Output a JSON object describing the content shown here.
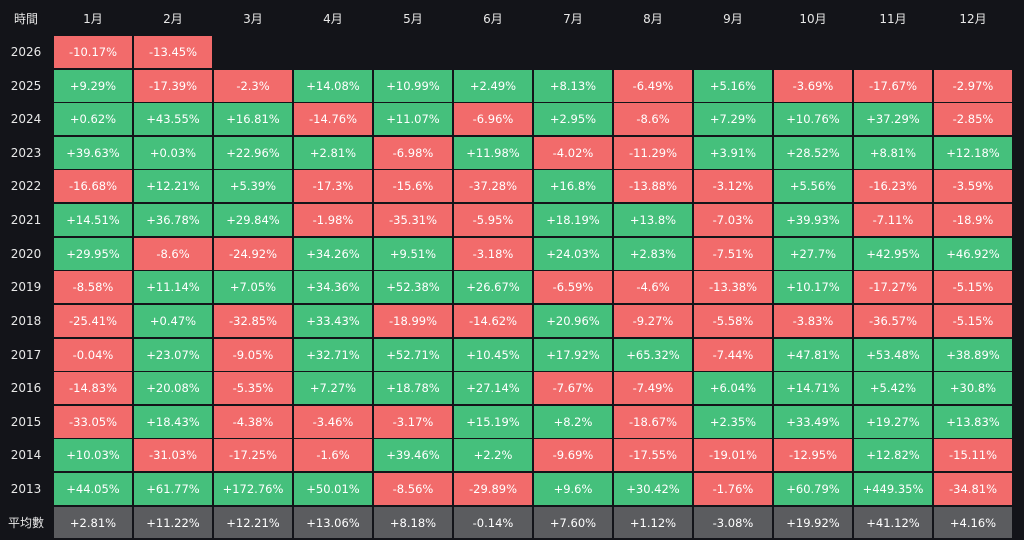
{
  "table": {
    "header": [
      "時間",
      "1月",
      "2月",
      "3月",
      "4月",
      "5月",
      "6月",
      "7月",
      "8月",
      "9月",
      "10月",
      "11月",
      "12月"
    ],
    "rows": [
      {
        "label": "2026",
        "cells": [
          "-10.17%",
          "-13.45%"
        ]
      },
      {
        "label": "2025",
        "cells": [
          "+9.29%",
          "-17.39%",
          "-2.3%",
          "+14.08%",
          "+10.99%",
          "+2.49%",
          "+8.13%",
          "-6.49%",
          "+5.16%",
          "-3.69%",
          "-17.67%",
          "-2.97%"
        ]
      },
      {
        "label": "2024",
        "cells": [
          "+0.62%",
          "+43.55%",
          "+16.81%",
          "-14.76%",
          "+11.07%",
          "-6.96%",
          "+2.95%",
          "-8.6%",
          "+7.29%",
          "+10.76%",
          "+37.29%",
          "-2.85%"
        ]
      },
      {
        "label": "2023",
        "cells": [
          "+39.63%",
          "+0.03%",
          "+22.96%",
          "+2.81%",
          "-6.98%",
          "+11.98%",
          "-4.02%",
          "-11.29%",
          "+3.91%",
          "+28.52%",
          "+8.81%",
          "+12.18%"
        ]
      },
      {
        "label": "2022",
        "cells": [
          "-16.68%",
          "+12.21%",
          "+5.39%",
          "-17.3%",
          "-15.6%",
          "-37.28%",
          "+16.8%",
          "-13.88%",
          "-3.12%",
          "+5.56%",
          "-16.23%",
          "-3.59%"
        ]
      },
      {
        "label": "2021",
        "cells": [
          "+14.51%",
          "+36.78%",
          "+29.84%",
          "-1.98%",
          "-35.31%",
          "-5.95%",
          "+18.19%",
          "+13.8%",
          "-7.03%",
          "+39.93%",
          "-7.11%",
          "-18.9%"
        ]
      },
      {
        "label": "2020",
        "cells": [
          "+29.95%",
          "-8.6%",
          "-24.92%",
          "+34.26%",
          "+9.51%",
          "-3.18%",
          "+24.03%",
          "+2.83%",
          "-7.51%",
          "+27.7%",
          "+42.95%",
          "+46.92%"
        ]
      },
      {
        "label": "2019",
        "cells": [
          "-8.58%",
          "+11.14%",
          "+7.05%",
          "+34.36%",
          "+52.38%",
          "+26.67%",
          "-6.59%",
          "-4.6%",
          "-13.38%",
          "+10.17%",
          "-17.27%",
          "-5.15%"
        ]
      },
      {
        "label": "2018",
        "cells": [
          "-25.41%",
          "+0.47%",
          "-32.85%",
          "+33.43%",
          "-18.99%",
          "-14.62%",
          "+20.96%",
          "-9.27%",
          "-5.58%",
          "-3.83%",
          "-36.57%",
          "-5.15%"
        ]
      },
      {
        "label": "2017",
        "cells": [
          "-0.04%",
          "+23.07%",
          "-9.05%",
          "+32.71%",
          "+52.71%",
          "+10.45%",
          "+17.92%",
          "+65.32%",
          "-7.44%",
          "+47.81%",
          "+53.48%",
          "+38.89%"
        ]
      },
      {
        "label": "2016",
        "cells": [
          "-14.83%",
          "+20.08%",
          "-5.35%",
          "+7.27%",
          "+18.78%",
          "+27.14%",
          "-7.67%",
          "-7.49%",
          "+6.04%",
          "+14.71%",
          "+5.42%",
          "+30.8%"
        ]
      },
      {
        "label": "2015",
        "cells": [
          "-33.05%",
          "+18.43%",
          "-4.38%",
          "-3.46%",
          "-3.17%",
          "+15.19%",
          "+8.2%",
          "-18.67%",
          "+2.35%",
          "+33.49%",
          "+19.27%",
          "+13.83%"
        ]
      },
      {
        "label": "2014",
        "cells": [
          "+10.03%",
          "-31.03%",
          "-17.25%",
          "-1.6%",
          "+39.46%",
          "+2.2%",
          "-9.69%",
          "-17.55%",
          "-19.01%",
          "-12.95%",
          "+12.82%",
          "-15.11%"
        ]
      },
      {
        "label": "2013",
        "cells": [
          "+44.05%",
          "+61.77%",
          "+172.76%",
          "+50.01%",
          "-8.56%",
          "-29.89%",
          "+9.6%",
          "+30.42%",
          "-1.76%",
          "+60.79%",
          "+449.35%",
          "-34.81%"
        ]
      }
    ],
    "average": {
      "label": "平均數",
      "cells": [
        "+2.81%",
        "+11.22%",
        "+12.21%",
        "+13.06%",
        "+8.18%",
        "-0.14%",
        "+7.60%",
        "+1.12%",
        "-3.08%",
        "+19.92%",
        "+41.12%",
        "+4.16%"
      ]
    }
  }
}
